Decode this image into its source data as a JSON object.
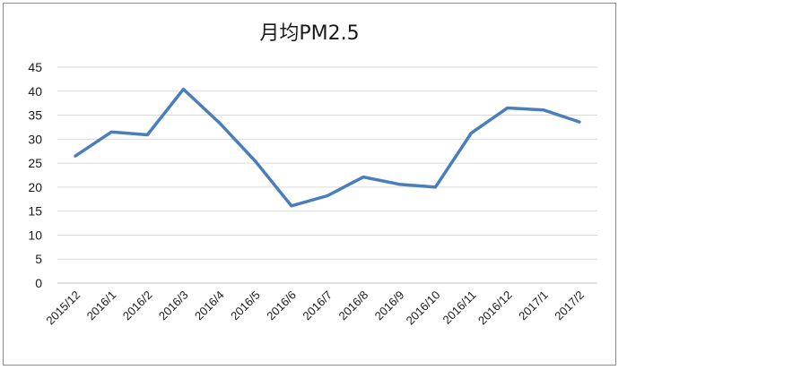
{
  "chart_data": {
    "type": "line",
    "title": "月均PM2.5",
    "xlabel": "",
    "ylabel": "",
    "categories": [
      "2015/12",
      "2016/1",
      "2016/2",
      "2016/3",
      "2016/4",
      "2016/5",
      "2016/6",
      "2016/7",
      "2016/8",
      "2016/9",
      "2016/10",
      "2016/11",
      "2016/12",
      "2017/1",
      "2017/2"
    ],
    "series": [
      {
        "values": [
          26.5,
          31.5,
          30.9,
          40.4,
          33.4,
          25.4,
          16.1,
          18.2,
          22.1,
          20.6,
          20.0,
          31.3,
          36.5,
          36.1,
          33.6
        ]
      }
    ],
    "ylim": [
      0,
      45
    ],
    "yticks": [
      "0",
      "5",
      "10",
      "15",
      "20",
      "25",
      "30",
      "35",
      "40",
      "45"
    ],
    "grid": true,
    "legend": "none",
    "colors": {
      "line": "#4a7ebb",
      "grid": "#d9d9d9",
      "frame": "#8c8c8c"
    }
  }
}
